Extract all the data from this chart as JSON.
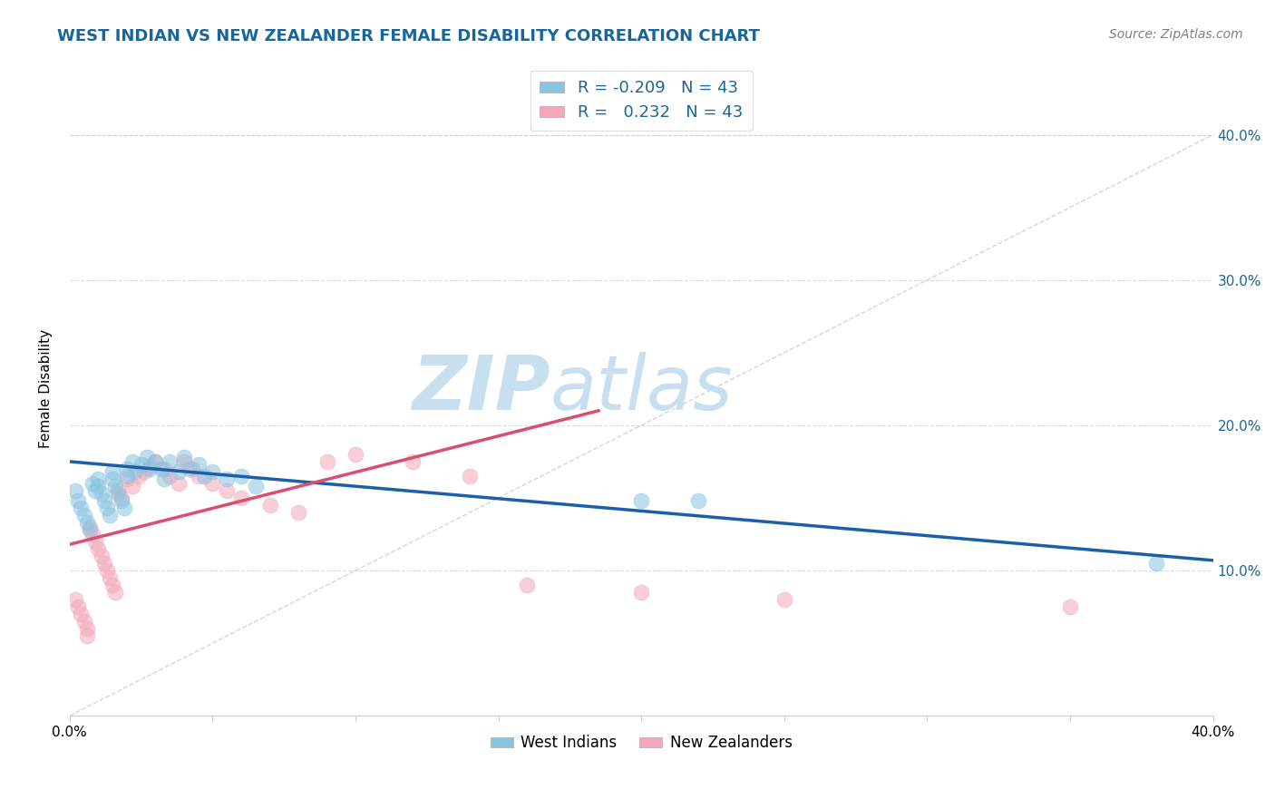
{
  "title": "WEST INDIAN VS NEW ZEALANDER FEMALE DISABILITY CORRELATION CHART",
  "source": "Source: ZipAtlas.com",
  "ylabel": "Female Disability",
  "xmin": 0.0,
  "xmax": 0.4,
  "ymin": 0.0,
  "ymax": 0.45,
  "yticks": [
    0.1,
    0.2,
    0.3,
    0.4
  ],
  "right_ytick_labels": [
    "10.0%",
    "20.0%",
    "30.0%",
    "40.0%"
  ],
  "color_blue": "#89c4e1",
  "color_pink": "#f4a7b9",
  "color_trend_blue": "#1a5fa8",
  "color_trend_pink": "#d94f6e",
  "color_diag": "#cccccc",
  "color_title": "#1a6699",
  "color_legend_text": "#1a6699",
  "background": "#ffffff",
  "grid_color": "#cccccc",
  "west_indian_x": [
    0.002,
    0.003,
    0.004,
    0.005,
    0.006,
    0.007,
    0.008,
    0.009,
    0.01,
    0.01,
    0.011,
    0.012,
    0.013,
    0.014,
    0.015,
    0.015,
    0.016,
    0.017,
    0.018,
    0.019,
    0.02,
    0.02,
    0.022,
    0.023,
    0.025,
    0.027,
    0.028,
    0.03,
    0.032,
    0.033,
    0.035,
    0.038,
    0.04,
    0.042,
    0.045,
    0.047,
    0.05,
    0.055,
    0.06,
    0.065,
    0.2,
    0.22,
    0.38
  ],
  "west_indian_y": [
    0.155,
    0.148,
    0.143,
    0.138,
    0.133,
    0.128,
    0.16,
    0.155,
    0.163,
    0.158,
    0.153,
    0.148,
    0.143,
    0.138,
    0.168,
    0.163,
    0.158,
    0.153,
    0.148,
    0.143,
    0.17,
    0.165,
    0.175,
    0.168,
    0.173,
    0.178,
    0.17,
    0.175,
    0.17,
    0.163,
    0.175,
    0.168,
    0.178,
    0.17,
    0.173,
    0.165,
    0.168,
    0.163,
    0.165,
    0.158,
    0.148,
    0.148,
    0.105
  ],
  "new_zealander_x": [
    0.002,
    0.003,
    0.004,
    0.005,
    0.006,
    0.006,
    0.007,
    0.008,
    0.009,
    0.01,
    0.011,
    0.012,
    0.013,
    0.014,
    0.015,
    0.016,
    0.017,
    0.018,
    0.02,
    0.022,
    0.024,
    0.026,
    0.028,
    0.03,
    0.033,
    0.035,
    0.038,
    0.04,
    0.043,
    0.045,
    0.05,
    0.055,
    0.06,
    0.07,
    0.08,
    0.09,
    0.1,
    0.12,
    0.14,
    0.16,
    0.2,
    0.25,
    0.35
  ],
  "new_zealander_y": [
    0.08,
    0.075,
    0.07,
    0.065,
    0.06,
    0.055,
    0.13,
    0.125,
    0.12,
    0.115,
    0.11,
    0.105,
    0.1,
    0.095,
    0.09,
    0.085,
    0.155,
    0.15,
    0.163,
    0.158,
    0.165,
    0.168,
    0.172,
    0.175,
    0.17,
    0.165,
    0.16,
    0.175,
    0.17,
    0.165,
    0.16,
    0.155,
    0.15,
    0.145,
    0.14,
    0.175,
    0.18,
    0.175,
    0.165,
    0.09,
    0.085,
    0.08,
    0.075
  ],
  "wi_trend_x0": 0.0,
  "wi_trend_x1": 0.4,
  "wi_trend_y0": 0.175,
  "wi_trend_y1": 0.107,
  "nz_trend_x0": 0.0,
  "nz_trend_x1": 0.185,
  "nz_trend_y0": 0.118,
  "nz_trend_y1": 0.21,
  "watermark_zip": "ZIP",
  "watermark_atlas": "atlas",
  "watermark_color_zip": "#c8dff0",
  "watermark_color_atlas": "#c8dff0"
}
